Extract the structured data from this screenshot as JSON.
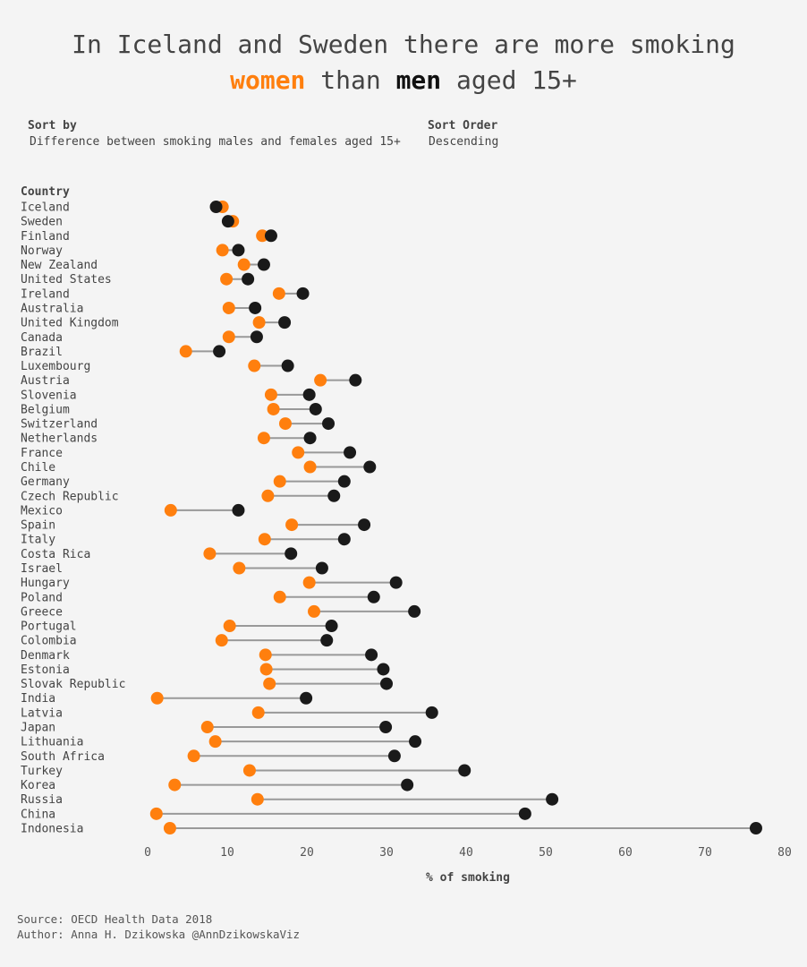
{
  "title": {
    "line1": "In Iceland and Sweden there are more smoking",
    "women": "women",
    "mid": " than ",
    "men": "men",
    "end": " aged 15+"
  },
  "controls": {
    "sort_by_label": "Sort by",
    "sort_by_value": "Difference between smoking males and females aged 15+",
    "sort_order_label": "Sort Order",
    "sort_order_value": "Descending"
  },
  "footer": {
    "source": "Source: OECD Health Data 2018",
    "author": "Author: Anna H. Dzikowska @AnnDzikowskaViz"
  },
  "chart_data": {
    "type": "dumbbell",
    "ylabel": "Country",
    "xlabel": "% of smoking",
    "xlim": [
      0,
      80
    ],
    "xticks": [
      0,
      10,
      20,
      30,
      40,
      50,
      60,
      70,
      80
    ],
    "colors": {
      "women": "#ff7f0e",
      "men": "#1a1a1a",
      "line": "#999999"
    },
    "countries": [
      "Iceland",
      "Sweden",
      "Finland",
      "Norway",
      "New Zealand",
      "United States",
      "Ireland",
      "Australia",
      "United Kingdom",
      "Canada",
      "Brazil",
      "Luxembourg",
      "Austria",
      "Slovenia",
      "Belgium",
      "Switzerland",
      "Netherlands",
      "France",
      "Chile",
      "Germany",
      "Czech Republic",
      "Mexico",
      "Spain",
      "Italy",
      "Costa Rica",
      "Israel",
      "Hungary",
      "Poland",
      "Greece",
      "Portugal",
      "Colombia",
      "Denmark",
      "Estonia",
      "Slovak Republic",
      "India",
      "Latvia",
      "Japan",
      "Lithuania",
      "South Africa",
      "Turkey",
      "Korea",
      "Russia",
      "China",
      "Indonesia"
    ],
    "women": [
      9.4,
      10.7,
      14.4,
      9.4,
      12.1,
      9.9,
      16.5,
      10.2,
      14.0,
      10.2,
      4.8,
      13.4,
      21.7,
      15.5,
      15.8,
      17.3,
      14.6,
      18.9,
      20.4,
      16.6,
      15.1,
      2.9,
      18.1,
      14.7,
      7.8,
      11.5,
      20.3,
      16.6,
      20.9,
      10.3,
      9.3,
      14.8,
      14.9,
      15.3,
      1.2,
      13.9,
      7.5,
      8.5,
      5.8,
      12.8,
      3.4,
      13.8,
      1.1,
      2.8
    ],
    "men": [
      8.6,
      10.1,
      15.5,
      11.4,
      14.6,
      12.6,
      19.5,
      13.5,
      17.2,
      13.7,
      9.0,
      17.6,
      26.1,
      20.3,
      21.1,
      22.7,
      20.4,
      25.4,
      27.9,
      24.7,
      23.4,
      11.4,
      27.2,
      24.7,
      18.0,
      21.9,
      31.2,
      28.4,
      33.5,
      23.1,
      22.5,
      28.1,
      29.6,
      30.0,
      19.9,
      35.7,
      29.9,
      33.6,
      31.0,
      39.8,
      32.6,
      50.8,
      47.4,
      76.4
    ]
  }
}
